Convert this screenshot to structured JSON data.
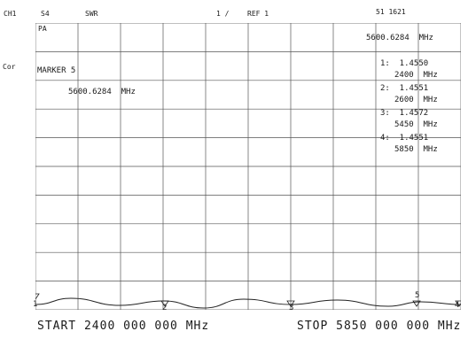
{
  "header": {
    "channel": "CH1",
    "meas": "S4",
    "swr": "SWR",
    "scale": "1 /",
    "ref": "REF 1",
    "date": "51 1621"
  },
  "left": {
    "cor": "Cor"
  },
  "grid": {
    "corner": "PA"
  },
  "marker": {
    "active_freq": "5600.6284  MHz",
    "label": "MARKER 5",
    "freq": "5600.6284  MHz"
  },
  "marker_list": [
    {
      "value": "1:  1.4550",
      "freq": "2400  MHz"
    },
    {
      "value": "2:  1.4551",
      "freq": "2600  MHz"
    },
    {
      "value": "3:  1.4572",
      "freq": "5450  MHz"
    },
    {
      "value": "4:  1.4551",
      "freq": "5850  MHz"
    }
  ],
  "marker_numbers": [
    "1",
    "2",
    "3",
    "5",
    "4"
  ],
  "footer": {
    "start": "START 2400 000 000 MHz",
    "stop": "STOP 5850 000 000 MHz"
  }
}
